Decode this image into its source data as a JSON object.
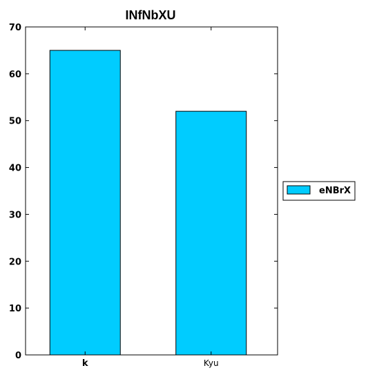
{
  "chart_data": {
    "type": "bar",
    "title": "INfNbXU",
    "categories": [
      "k",
      "Kyu"
    ],
    "series": [
      {
        "name": "eNBrX",
        "values": [
          65,
          52
        ]
      }
    ],
    "xlabel": "",
    "ylabel": "",
    "ylim": [
      0,
      70
    ],
    "yticks": [
      0,
      10,
      20,
      30,
      40,
      50,
      60,
      70
    ],
    "grid": false,
    "legend": "right",
    "bar_color": "#00ccff"
  }
}
